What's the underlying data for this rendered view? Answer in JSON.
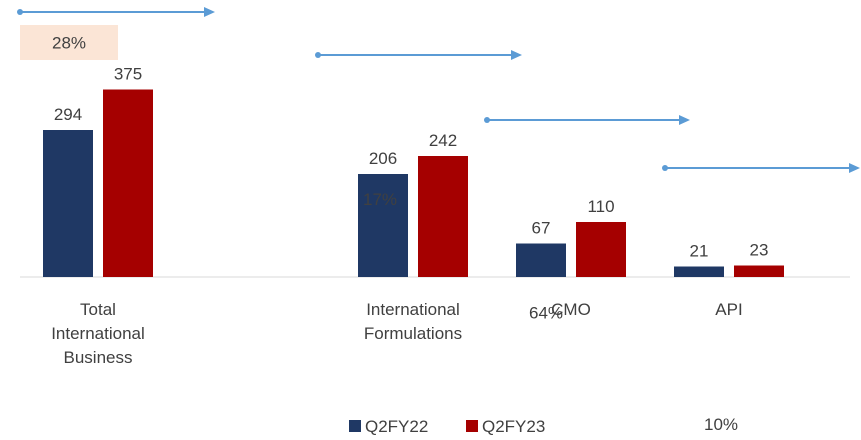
{
  "chart_data": {
    "type": "bar",
    "categories": [
      "Total\nInternational\nBusiness",
      "International\nFormulations",
      "CMO",
      "API"
    ],
    "series": [
      {
        "name": "Q2FY22",
        "color": "#1f3864",
        "values": [
          294,
          206,
          67,
          21
        ]
      },
      {
        "name": "Q2FY23",
        "color": "#a50000",
        "values": [
          375,
          242,
          110,
          23
        ]
      }
    ],
    "annotations": [
      "28%",
      "17%",
      "64%",
      "10%"
    ],
    "ylim": [
      0,
      400
    ],
    "legend": "bottom"
  }
}
